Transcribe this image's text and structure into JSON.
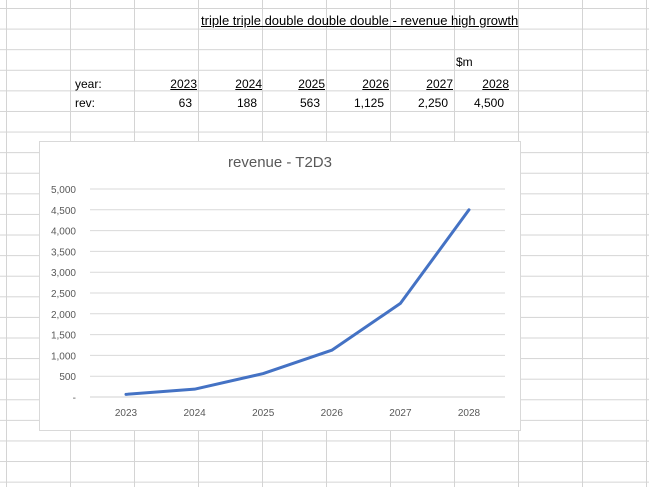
{
  "sheet": {
    "title": "triple triple double double double - revenue high growth",
    "unit": "$m",
    "row_year_label": "year:",
    "row_rev_label": "rev:",
    "years": [
      "2023",
      "2024",
      "2025",
      "2026",
      "2027",
      "2028"
    ],
    "revenues": [
      "63",
      "188",
      "563",
      "1,125",
      "2,250",
      "4,500"
    ]
  },
  "chart_data": {
    "type": "line",
    "title": "revenue - T2D3",
    "categories": [
      "2023",
      "2024",
      "2025",
      "2026",
      "2027",
      "2028"
    ],
    "series": [
      {
        "values": [
          63,
          188,
          563,
          1125,
          2250,
          4500
        ]
      }
    ],
    "ylim": [
      0,
      5000
    ],
    "yticks": [
      "-",
      "500",
      "1,000",
      "1,500",
      "2,000",
      "2,500",
      "3,000",
      "3,500",
      "4,000",
      "4,500",
      "5,000"
    ],
    "grid": true,
    "line_color": "#4472C4"
  }
}
